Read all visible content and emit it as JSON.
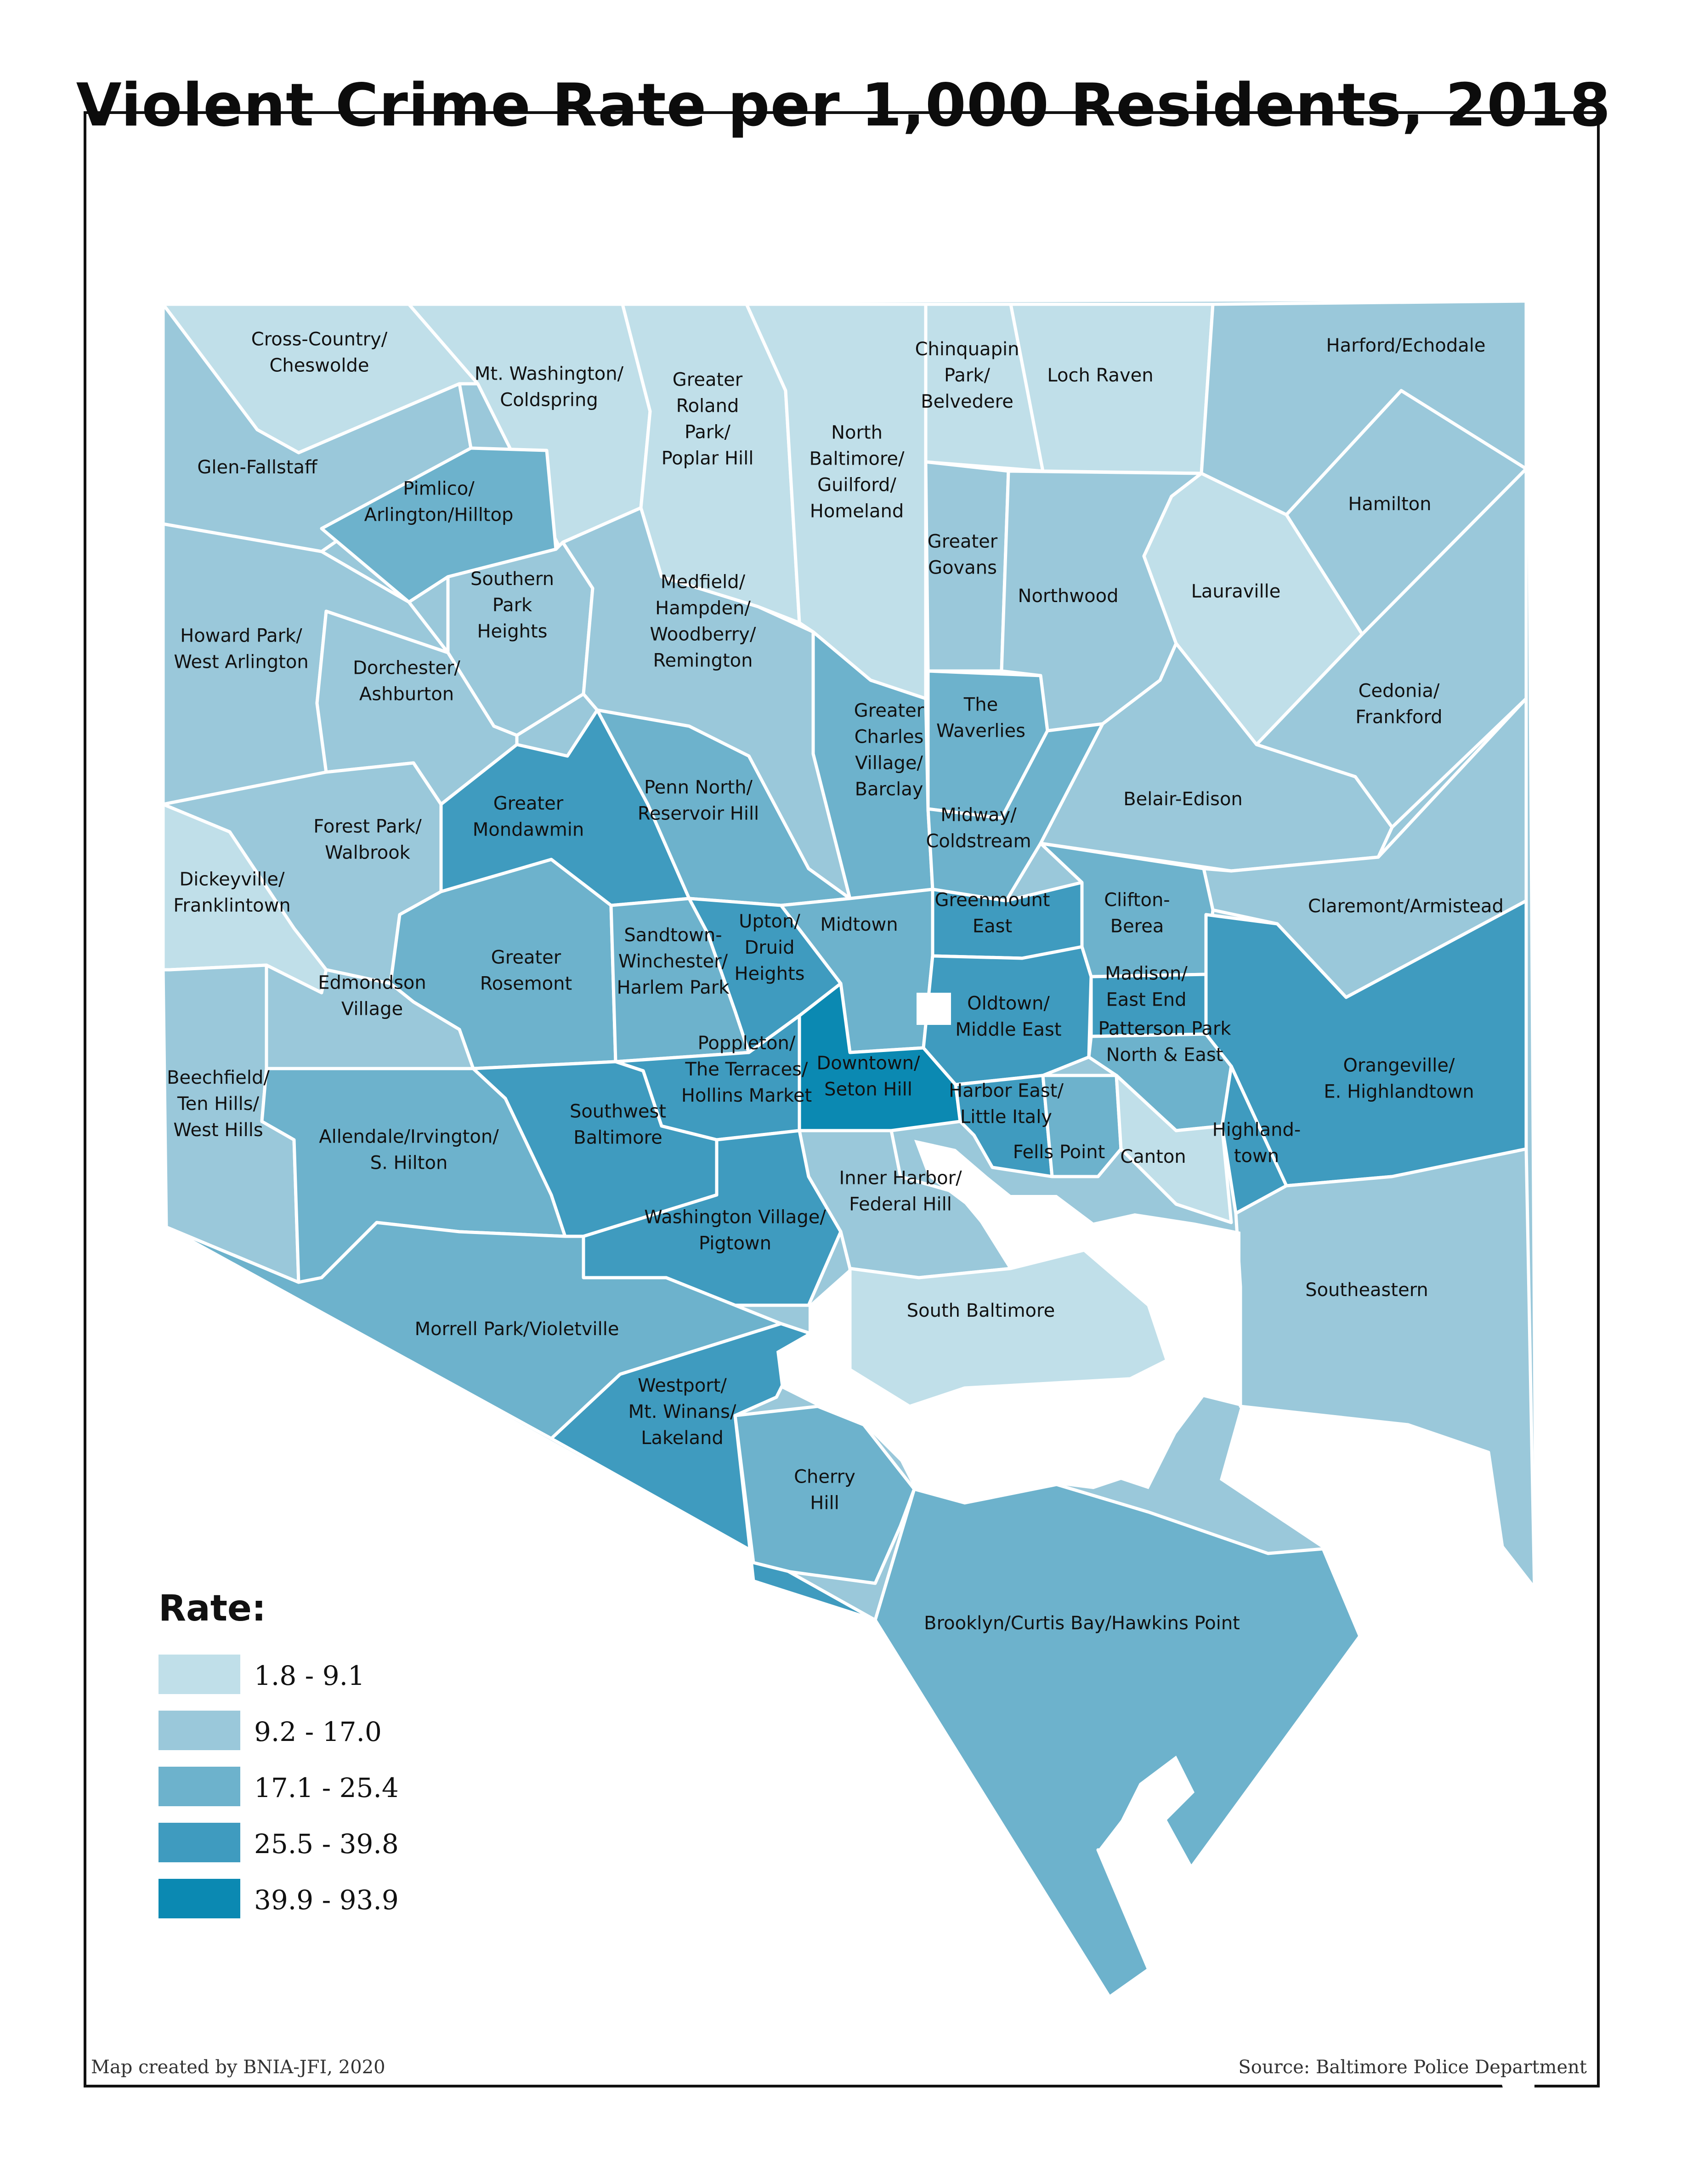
{
  "title": "Violent Crime Rate per 1,000 Residents, 2018",
  "legend": {
    "title": "Rate:",
    "classes": [
      {
        "label": "1.8 - 9.1",
        "color": "#c0dfe9"
      },
      {
        "label": "9.2 - 17.0",
        "color": "#9ac8da"
      },
      {
        "label": "17.1 - 25.4",
        "color": "#6db2cc"
      },
      {
        "label": "25.5 - 39.8",
        "color": "#3f9bbf"
      },
      {
        "label": "39.9 - 93.9",
        "color": "#0b89b2"
      }
    ]
  },
  "credit": "Map created by BNIA-JFI, 2020",
  "source": "Source: Baltimore Police Department",
  "neighborhoods": [
    {
      "id": "cross-country",
      "lines": [
        "Cross-Country/",
        "Cheswolde"
      ],
      "rate_class": 0
    },
    {
      "id": "mt-washington",
      "lines": [
        "Mt. Washington/",
        "Coldspring"
      ],
      "rate_class": 0
    },
    {
      "id": "greater-roland-park",
      "lines": [
        "Greater",
        "Roland",
        "Park/",
        "Poplar Hill"
      ],
      "rate_class": 0
    },
    {
      "id": "north-baltimore",
      "lines": [
        "North",
        "Baltimore/",
        "Guilford/",
        "Homeland"
      ],
      "rate_class": 0
    },
    {
      "id": "chinquapin-park",
      "lines": [
        "Chinquapin",
        "Park/",
        "Belvedere"
      ],
      "rate_class": 0
    },
    {
      "id": "loch-raven",
      "lines": [
        "Loch Raven"
      ],
      "rate_class": 0
    },
    {
      "id": "harford-echodale",
      "lines": [
        "Harford/Echodale"
      ],
      "rate_class": 1
    },
    {
      "id": "glen-fallstaff",
      "lines": [
        "Glen-Fallstaff"
      ],
      "rate_class": 1
    },
    {
      "id": "pimlico",
      "lines": [
        "Pimlico/",
        "Arlington/Hilltop"
      ],
      "rate_class": 2
    },
    {
      "id": "hamilton",
      "lines": [
        "Hamilton"
      ],
      "rate_class": 1
    },
    {
      "id": "greater-govans",
      "lines": [
        "Greater",
        "Govans"
      ],
      "rate_class": 1
    },
    {
      "id": "northwood",
      "lines": [
        "Northwood"
      ],
      "rate_class": 1
    },
    {
      "id": "lauraville",
      "lines": [
        "Lauraville"
      ],
      "rate_class": 0
    },
    {
      "id": "southern-park-heights",
      "lines": [
        "Southern",
        "Park",
        "Heights"
      ],
      "rate_class": 1
    },
    {
      "id": "medfield",
      "lines": [
        "Medfield/",
        "Hampden/",
        "Woodberry/",
        "Remington"
      ],
      "rate_class": 1
    },
    {
      "id": "howard-park",
      "lines": [
        "Howard Park/",
        "West Arlington"
      ],
      "rate_class": 1
    },
    {
      "id": "dorchester",
      "lines": [
        "Dorchester/",
        "Ashburton"
      ],
      "rate_class": 1
    },
    {
      "id": "the-waverlies",
      "lines": [
        "The",
        "Waverlies"
      ],
      "rate_class": 2
    },
    {
      "id": "cedonia",
      "lines": [
        "Cedonia/",
        "Frankford"
      ],
      "rate_class": 1
    },
    {
      "id": "greater-charles-village",
      "lines": [
        "Greater",
        "Charles",
        "Village/",
        "Barclay"
      ],
      "rate_class": 2
    },
    {
      "id": "greater-mondawmin",
      "lines": [
        "Greater",
        "Mondawmin"
      ],
      "rate_class": 3
    },
    {
      "id": "penn-north",
      "lines": [
        "Penn North/",
        "Reservoir Hill"
      ],
      "rate_class": 2
    },
    {
      "id": "belair-edison",
      "lines": [
        "Belair-Edison"
      ],
      "rate_class": 1
    },
    {
      "id": "forest-park",
      "lines": [
        "Forest Park/",
        "Walbrook"
      ],
      "rate_class": 1
    },
    {
      "id": "midway",
      "lines": [
        "Midway/",
        "Coldstream"
      ],
      "rate_class": 2
    },
    {
      "id": "dickeyville",
      "lines": [
        "Dickeyville/",
        "Franklintown"
      ],
      "rate_class": 0
    },
    {
      "id": "claremont",
      "lines": [
        "Claremont/Armistead"
      ],
      "rate_class": 1
    },
    {
      "id": "midtown",
      "lines": [
        "Midtown"
      ],
      "rate_class": 2
    },
    {
      "id": "greenmount-east",
      "lines": [
        "Greenmount",
        "East"
      ],
      "rate_class": 3
    },
    {
      "id": "clifton-berea",
      "lines": [
        "Clifton-",
        "Berea"
      ],
      "rate_class": 2
    },
    {
      "id": "greater-rosemont",
      "lines": [
        "Greater",
        "Rosemont"
      ],
      "rate_class": 2
    },
    {
      "id": "sandtown",
      "lines": [
        "Sandtown-",
        "Winchester/",
        "Harlem Park"
      ],
      "rate_class": 2
    },
    {
      "id": "upton",
      "lines": [
        "Upton/",
        "Druid",
        "Heights"
      ],
      "rate_class": 3
    },
    {
      "id": "edmondson-village",
      "lines": [
        "Edmondson",
        "Village"
      ],
      "rate_class": 1
    },
    {
      "id": "oldtown",
      "lines": [
        "Oldtown/",
        "Middle East"
      ],
      "rate_class": 3
    },
    {
      "id": "madison",
      "lines": [
        "Madison/",
        "East End"
      ],
      "rate_class": 3
    },
    {
      "id": "patterson-park",
      "lines": [
        "Patterson Park",
        "North & East"
      ],
      "rate_class": 2
    },
    {
      "id": "orangeville",
      "lines": [
        "Orangeville/",
        "E. Highlandtown"
      ],
      "rate_class": 3
    },
    {
      "id": "beechfield",
      "lines": [
        "Beechfield/",
        "Ten Hills/",
        "West Hills"
      ],
      "rate_class": 1
    },
    {
      "id": "poppleton",
      "lines": [
        "Poppleton/",
        "The Terraces/",
        "Hollins Market"
      ],
      "rate_class": 3
    },
    {
      "id": "downtown",
      "lines": [
        "Downtown/",
        "Seton Hill"
      ],
      "rate_class": 4
    },
    {
      "id": "harbor-east",
      "lines": [
        "Harbor East/",
        "Little Italy"
      ],
      "rate_class": 3
    },
    {
      "id": "fells-point",
      "lines": [
        "Fells Point"
      ],
      "rate_class": 2
    },
    {
      "id": "canton",
      "lines": [
        "Canton"
      ],
      "rate_class": 0
    },
    {
      "id": "highlandtown",
      "lines": [
        "Highland-",
        "town"
      ],
      "rate_class": 3
    },
    {
      "id": "allendale",
      "lines": [
        "Allendale/Irvington/",
        "S. Hilton"
      ],
      "rate_class": 2
    },
    {
      "id": "southwest-baltimore",
      "lines": [
        "Southwest",
        "Baltimore"
      ],
      "rate_class": 3
    },
    {
      "id": "inner-harbor",
      "lines": [
        "Inner Harbor/",
        "Federal Hill"
      ],
      "rate_class": 1
    },
    {
      "id": "washington-village",
      "lines": [
        "Washington Village/",
        "Pigtown"
      ],
      "rate_class": 3
    },
    {
      "id": "southeastern",
      "lines": [
        "Southeastern"
      ],
      "rate_class": 1
    },
    {
      "id": "south-baltimore",
      "lines": [
        "South Baltimore"
      ],
      "rate_class": 0
    },
    {
      "id": "morrell-park",
      "lines": [
        "Morrell Park/Violetville"
      ],
      "rate_class": 2
    },
    {
      "id": "westport",
      "lines": [
        "Westport/",
        "Mt. Winans/",
        "Lakeland"
      ],
      "rate_class": 3
    },
    {
      "id": "cherry-hill",
      "lines": [
        "Cherry",
        "Hill"
      ],
      "rate_class": 2
    },
    {
      "id": "brooklyn",
      "lines": [
        "Brooklyn/Curtis Bay/Hawkins Point"
      ],
      "rate_class": 2
    }
  ]
}
